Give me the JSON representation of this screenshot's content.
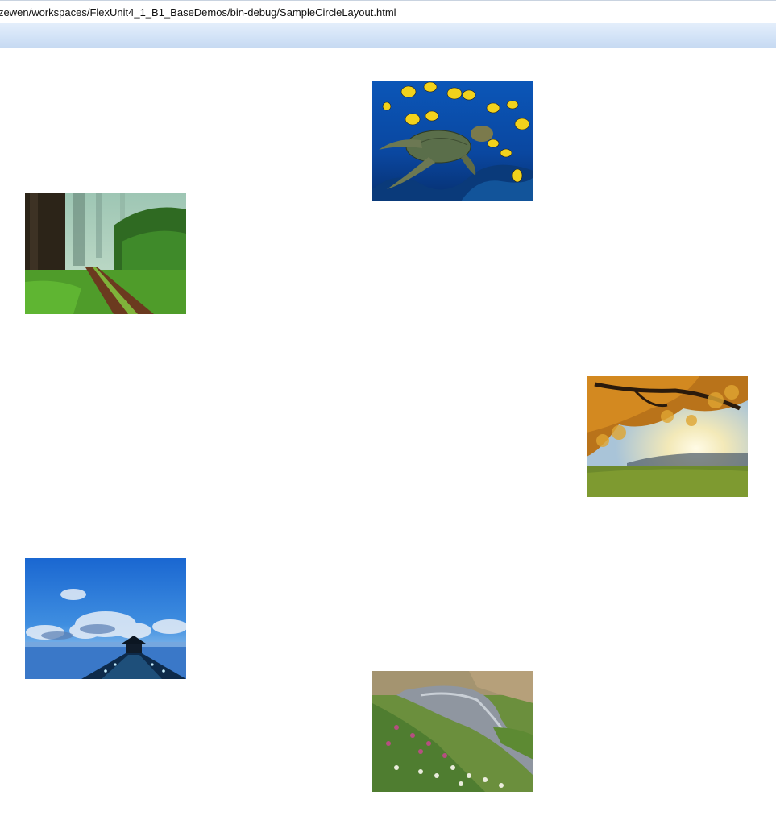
{
  "browser": {
    "address_url": "zewen/workspaces/FlexUnit4_1_B1_BaseDemos/bin-debug/SampleCircleLayout.html"
  },
  "layout": {
    "name": "SampleCircleLayout",
    "images": [
      {
        "id": "sea-turtle",
        "subject": "sea turtle with yellow fish"
      },
      {
        "id": "forest-path",
        "subject": "forest path"
      },
      {
        "id": "autumn-tree",
        "subject": "autumn tree at sunset"
      },
      {
        "id": "blue-pier",
        "subject": "pier at blue dusk"
      },
      {
        "id": "mountain-stream",
        "subject": "mountain stream with wildflowers"
      }
    ]
  }
}
